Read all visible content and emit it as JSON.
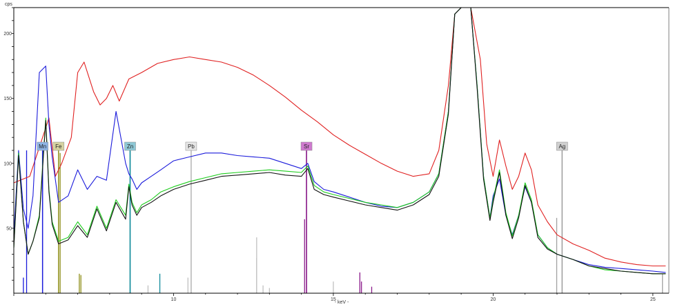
{
  "chart_data": {
    "type": "line",
    "title": "",
    "xlabel": "- keV -",
    "ylabel": "cps",
    "xlim": [
      5.0,
      25.5
    ],
    "ylim": [
      0,
      220
    ],
    "x_ticks": [
      {
        "value": 10,
        "label": "10"
      },
      {
        "value": 15,
        "label": "15"
      },
      {
        "value": 20,
        "label": "20"
      },
      {
        "value": 25,
        "label": "25"
      }
    ],
    "y_ticks": [
      {
        "value": 50,
        "label": "50"
      },
      {
        "value": 100,
        "label": "100"
      },
      {
        "value": 150,
        "label": "150"
      },
      {
        "value": 200,
        "label": "200"
      }
    ],
    "grid": false,
    "legend": "none",
    "series": [
      {
        "color": "#e02020",
        "x": [
          5.0,
          5.5,
          5.9,
          6.1,
          6.3,
          6.5,
          6.8,
          7.0,
          7.2,
          7.5,
          7.7,
          7.9,
          8.1,
          8.3,
          8.6,
          9.0,
          9.5,
          10.0,
          10.5,
          11.0,
          11.5,
          12.0,
          12.5,
          13.0,
          13.5,
          14.0,
          14.5,
          15.0,
          15.5,
          16.0,
          16.5,
          17.0,
          17.5,
          18.0,
          18.3,
          18.6,
          18.8,
          19.0,
          19.3,
          19.6,
          19.8,
          20.0,
          20.2,
          20.4,
          20.6,
          20.8,
          21.0,
          21.2,
          21.4,
          21.7,
          22.0,
          22.5,
          23.0,
          23.5,
          24.0,
          24.5,
          25.0,
          25.4
        ],
        "y": [
          85,
          90,
          120,
          135,
          90,
          100,
          120,
          170,
          178,
          155,
          145,
          150,
          160,
          148,
          165,
          170,
          177,
          180,
          182,
          180,
          178,
          174,
          168,
          160,
          151,
          141,
          132,
          122,
          114,
          107,
          100,
          94,
          90,
          92,
          110,
          160,
          215,
          220,
          220,
          180,
          115,
          90,
          118,
          98,
          80,
          90,
          108,
          95,
          68,
          55,
          45,
          38,
          33,
          27,
          24,
          22,
          21,
          21
        ]
      },
      {
        "color": "#1a1adb",
        "x": [
          5.0,
          5.15,
          5.3,
          5.45,
          5.6,
          5.8,
          6.0,
          6.1,
          6.2,
          6.4,
          6.7,
          7.0,
          7.3,
          7.6,
          7.9,
          8.2,
          8.5,
          8.6,
          8.7,
          8.85,
          9.0,
          9.3,
          9.6,
          10.0,
          10.5,
          11.0,
          11.5,
          12.0,
          12.5,
          13.0,
          13.5,
          14.0,
          14.2,
          14.4,
          14.7,
          15.0,
          15.5,
          16.0,
          16.5,
          17.0,
          17.5,
          18.0,
          18.3,
          18.6,
          18.8,
          19.0,
          19.3,
          19.5,
          19.7,
          19.9,
          20.0,
          20.2,
          20.4,
          20.6,
          20.8,
          21.0,
          21.2,
          21.4,
          21.7,
          22.0,
          22.5,
          23.0,
          23.5,
          24.0,
          24.5,
          25.0,
          25.4
        ],
        "y": [
          45,
          110,
          65,
          50,
          75,
          170,
          175,
          130,
          105,
          70,
          75,
          95,
          80,
          90,
          87,
          140,
          100,
          92,
          88,
          80,
          85,
          90,
          95,
          102,
          105,
          108,
          108,
          106,
          105,
          104,
          100,
          96,
          100,
          86,
          80,
          78,
          74,
          70,
          67,
          66,
          70,
          78,
          92,
          140,
          215,
          220,
          220,
          160,
          90,
          58,
          75,
          88,
          60,
          45,
          60,
          82,
          70,
          45,
          35,
          30,
          26,
          22,
          20,
          19,
          18,
          17,
          16
        ]
      },
      {
        "color": "#1ccc1c",
        "x": [
          5.0,
          5.15,
          5.3,
          5.45,
          5.6,
          5.8,
          6.0,
          6.1,
          6.2,
          6.4,
          6.7,
          7.0,
          7.3,
          7.6,
          7.9,
          8.2,
          8.5,
          8.6,
          8.7,
          8.85,
          9.0,
          9.3,
          9.6,
          10.0,
          10.5,
          11.0,
          11.5,
          12.0,
          12.5,
          13.0,
          13.5,
          14.0,
          14.2,
          14.4,
          14.7,
          15.0,
          15.5,
          16.0,
          16.5,
          17.0,
          17.5,
          18.0,
          18.3,
          18.6,
          18.8,
          19.0,
          19.3,
          19.5,
          19.7,
          19.9,
          20.0,
          20.2,
          20.4,
          20.6,
          20.8,
          21.0,
          21.2,
          21.4,
          21.7,
          22.0,
          22.5,
          23.0,
          23.5,
          24.0,
          24.5,
          25.0,
          25.4
        ],
        "y": [
          35,
          108,
          55,
          30,
          40,
          60,
          135,
          80,
          55,
          40,
          43,
          55,
          45,
          67,
          50,
          72,
          60,
          84,
          70,
          62,
          68,
          72,
          78,
          82,
          86,
          89,
          92,
          93,
          94,
          95,
          94,
          93,
          98,
          83,
          78,
          76,
          73,
          70,
          68,
          66,
          70,
          78,
          92,
          140,
          215,
          220,
          220,
          160,
          90,
          58,
          72,
          95,
          62,
          44,
          60,
          85,
          72,
          45,
          35,
          30,
          26,
          21,
          18,
          17,
          16,
          15,
          15
        ]
      },
      {
        "color": "#111111",
        "x": [
          5.0,
          5.15,
          5.3,
          5.45,
          5.6,
          5.8,
          6.0,
          6.1,
          6.2,
          6.4,
          6.7,
          7.0,
          7.3,
          7.6,
          7.9,
          8.2,
          8.5,
          8.6,
          8.7,
          8.85,
          9.0,
          9.3,
          9.6,
          10.0,
          10.5,
          11.0,
          11.5,
          12.0,
          12.5,
          13.0,
          13.5,
          14.0,
          14.2,
          14.4,
          14.7,
          15.0,
          15.5,
          16.0,
          16.5,
          17.0,
          17.5,
          18.0,
          18.3,
          18.6,
          18.8,
          19.0,
          19.3,
          19.5,
          19.7,
          19.9,
          20.0,
          20.2,
          20.4,
          20.6,
          20.8,
          21.0,
          21.2,
          21.4,
          21.7,
          22.0,
          22.5,
          23.0,
          23.5,
          24.0,
          24.5,
          25.0,
          25.4
        ],
        "y": [
          35,
          106,
          55,
          30,
          40,
          58,
          133,
          78,
          53,
          38,
          41,
          52,
          43,
          65,
          48,
          70,
          57,
          82,
          68,
          60,
          66,
          70,
          75,
          80,
          84,
          87,
          90,
          91,
          92,
          93,
          91,
          90,
          96,
          80,
          76,
          74,
          71,
          68,
          66,
          64,
          68,
          76,
          90,
          138,
          215,
          220,
          220,
          158,
          88,
          56,
          70,
          93,
          60,
          42,
          58,
          83,
          70,
          43,
          34,
          30,
          26,
          21,
          19,
          17,
          16,
          15,
          15
        ]
      }
    ],
    "element_markers": [
      {
        "label": "Mn",
        "x": 5.9,
        "fill": "#8fb5e6",
        "line_color": "#1a1adb",
        "line_top": 110
      },
      {
        "label": "Fe",
        "x": 6.4,
        "fill": "#d6d2a0",
        "line_color": "#8f8f1a",
        "line_top": 110
      },
      {
        "label": "Zn",
        "x": 8.64,
        "fill": "#8ec8d6",
        "line_color": "#0f8a9a",
        "line_top": 110
      },
      {
        "label": "Pb",
        "x": 10.55,
        "fill": "#e6e6e6",
        "line_color": "#b4b4b4",
        "line_top": 110
      },
      {
        "label": "Sr",
        "x": 14.16,
        "fill": "#cf7acf",
        "line_color": "#8a1a8a",
        "line_top": 110
      },
      {
        "label": "Ag",
        "x": 22.16,
        "fill": "#d0d0d0",
        "line_color": "#a0a0a0",
        "line_top": 110
      }
    ],
    "minor_lines": [
      {
        "x": 5.4,
        "h": 110,
        "color": "#1a1adb"
      },
      {
        "x": 5.3,
        "h": 12,
        "color": "#1a1adb"
      },
      {
        "x": 6.45,
        "h": 108,
        "color": "#8f8f1a"
      },
      {
        "x": 7.05,
        "h": 15,
        "color": "#8f8f1a"
      },
      {
        "x": 7.1,
        "h": 14,
        "color": "#8f8f1a"
      },
      {
        "x": 8.64,
        "h": 110,
        "color": "#0f8a9a"
      },
      {
        "x": 9.57,
        "h": 15,
        "color": "#0f8a9a"
      },
      {
        "x": 9.2,
        "h": 6,
        "color": "#c0c0c0"
      },
      {
        "x": 10.45,
        "h": 12,
        "color": "#c0c0c0"
      },
      {
        "x": 12.6,
        "h": 43,
        "color": "#c0c0c0"
      },
      {
        "x": 12.6,
        "h": 27,
        "color": "#c0c0c0"
      },
      {
        "x": 12.8,
        "h": 6,
        "color": "#c0c0c0"
      },
      {
        "x": 13.0,
        "h": 4,
        "color": "#c0c0c0"
      },
      {
        "x": 14.1,
        "h": 57,
        "color": "#8a1a8a"
      },
      {
        "x": 14.16,
        "h": 110,
        "color": "#8a1a8a"
      },
      {
        "x": 15.83,
        "h": 16,
        "color": "#8a1a8a"
      },
      {
        "x": 15.88,
        "h": 9,
        "color": "#8a1a8a"
      },
      {
        "x": 16.2,
        "h": 5,
        "color": "#8a1a8a"
      },
      {
        "x": 15.0,
        "h": 9,
        "color": "#c0c0c0"
      },
      {
        "x": 21.99,
        "h": 58,
        "color": "#a0a0a0"
      },
      {
        "x": 22.16,
        "h": 110,
        "color": "#a0a0a0"
      },
      {
        "x": 25.3,
        "h": 15,
        "color": "#a0a0a0"
      }
    ]
  }
}
